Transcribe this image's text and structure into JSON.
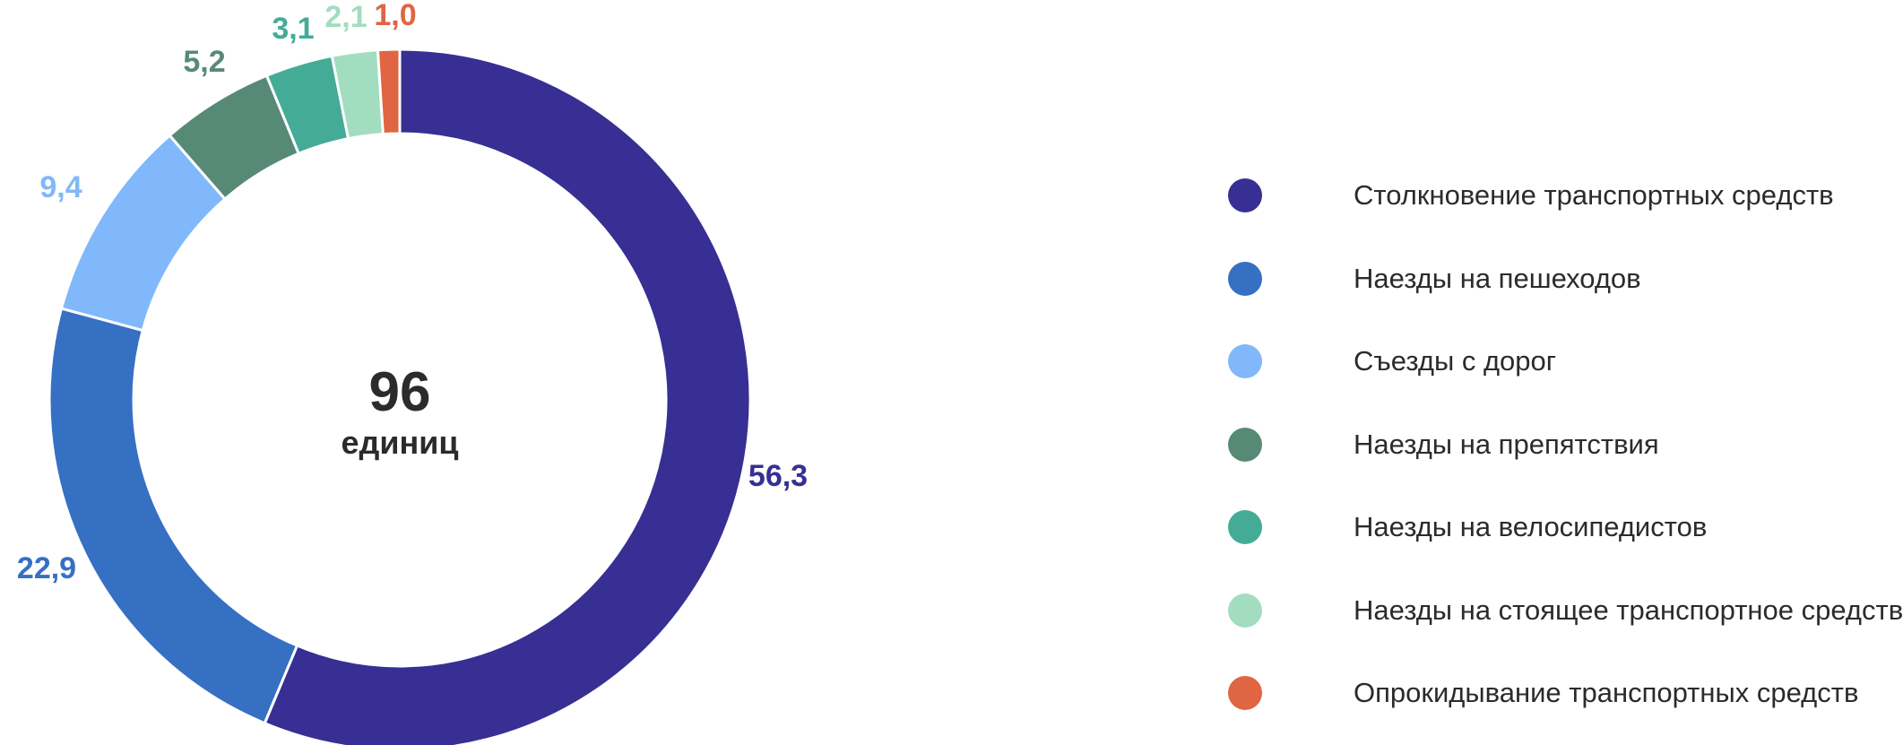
{
  "chart_data": {
    "type": "donut",
    "center_total": "96",
    "center_unit": "единиц",
    "categories": [
      "Столкновение транспортных средств",
      "Наезды на пешеходов",
      "Съезды с дорог",
      "Наезды на препятствия",
      "Наезды на велосипедистов",
      "Наезды на стоящее транспортное средство",
      "Опрокидывание транспортных средств"
    ],
    "values": [
      56.3,
      22.9,
      9.4,
      5.2,
      3.1,
      2.1,
      1.0
    ],
    "value_labels": [
      "56,3",
      "22,9",
      "9,4",
      "5,2",
      "3,1",
      "2,1",
      "1,0"
    ],
    "colors": [
      "#372f93",
      "#3670c3",
      "#80b8fb",
      "#578a76",
      "#44ab97",
      "#a2ddbf",
      "#e06542"
    ],
    "legend_position": "right",
    "start_angle": "top, clockwise"
  }
}
